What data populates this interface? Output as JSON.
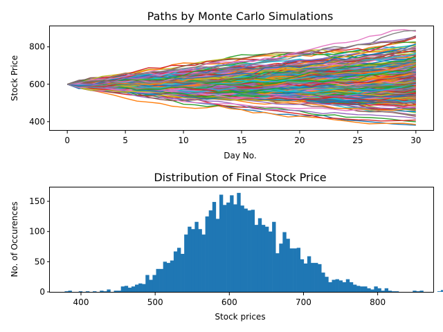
{
  "chart_data": [
    {
      "type": "line",
      "title": "Paths by Monte Carlo Simulations",
      "xlabel": "Day No.",
      "ylabel": "Stock Price",
      "xlim": [
        -1.5,
        31.5
      ],
      "ylim": [
        355,
        910
      ],
      "xticks": [
        0,
        5,
        10,
        15,
        20,
        25,
        30
      ],
      "yticks": [
        400,
        600,
        800
      ],
      "start_price": 600,
      "days": 30,
      "palette": [
        "#1f77b4",
        "#ff7f0e",
        "#2ca02c",
        "#d62728",
        "#9467bd",
        "#8c564b",
        "#e377c2",
        "#7f7f7f",
        "#bcbd22",
        "#17becf"
      ],
      "grid": false,
      "legend": "none"
    },
    {
      "type": "bar",
      "title": "Distribution of Final Stock Price",
      "xlabel": "Stock prices",
      "ylabel": "No. of Occurences",
      "xlim": [
        358,
        875
      ],
      "ylim": [
        0,
        173
      ],
      "xticks": [
        400,
        500,
        600,
        700,
        800
      ],
      "yticks": [
        0,
        50,
        100,
        150
      ],
      "bin_start": 378,
      "bin_width": 4.74,
      "color": "#1f77b4",
      "counts": [
        1,
        2,
        0,
        0,
        1,
        0,
        1,
        0,
        1,
        0,
        2,
        1,
        4,
        0,
        2,
        2,
        9,
        10,
        7,
        9,
        12,
        14,
        13,
        28,
        20,
        28,
        38,
        38,
        50,
        48,
        52,
        67,
        73,
        63,
        95,
        108,
        104,
        116,
        104,
        95,
        125,
        135,
        149,
        121,
        161,
        144,
        148,
        160,
        145,
        164,
        143,
        138,
        135,
        136,
        111,
        122,
        111,
        108,
        100,
        116,
        64,
        80,
        99,
        88,
        72,
        72,
        73,
        54,
        47,
        59,
        48,
        48,
        46,
        32,
        25,
        16,
        20,
        21,
        19,
        16,
        21,
        16,
        12,
        10,
        9,
        9,
        6,
        4,
        9,
        6,
        2,
        6,
        2,
        1,
        1,
        0,
        0,
        0,
        0,
        2,
        1,
        2,
        0,
        0,
        0,
        0,
        1,
        3,
        0
      ]
    }
  ]
}
